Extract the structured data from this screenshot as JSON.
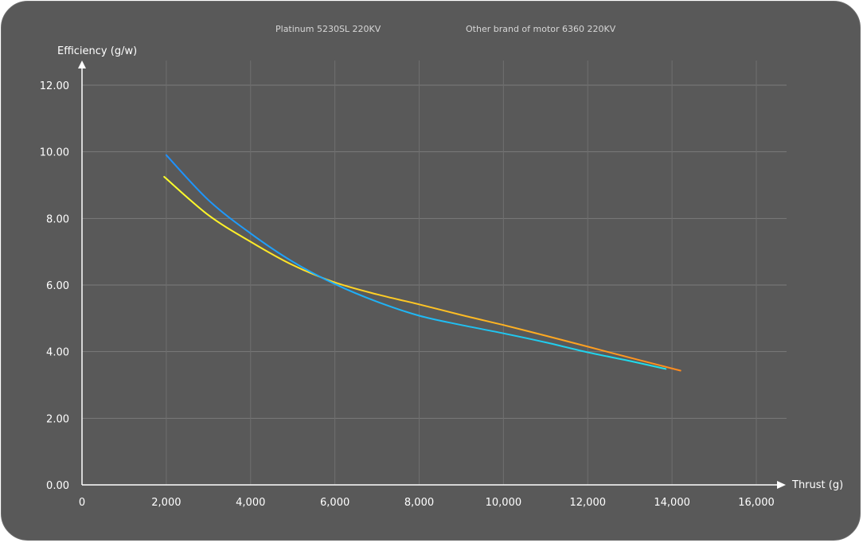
{
  "chart_data": {
    "type": "line",
    "xlabel": "Thrust (g)",
    "ylabel": "Efficiency (g/w)",
    "xlim": [
      0,
      16000
    ],
    "ylim": [
      0,
      12
    ],
    "x_ticks": [
      "0",
      "2,000",
      "4,000",
      "6,000",
      "8,000",
      "10,000",
      "12,000",
      "14,000",
      "16,000"
    ],
    "y_ticks": [
      "0.00",
      "2.00",
      "4.00",
      "6.00",
      "8.00",
      "10.00",
      "12.00"
    ],
    "grid": true,
    "legend_position": "top",
    "series": [
      {
        "name": "Platinum 5230SL 220KV",
        "gradient": [
          "#ffff2a",
          "#ff8a1e"
        ],
        "points": [
          [
            1950,
            9.25
          ],
          [
            3000,
            8.1
          ],
          [
            4000,
            7.3
          ],
          [
            5000,
            6.6
          ],
          [
            6000,
            6.08
          ],
          [
            7000,
            5.72
          ],
          [
            8000,
            5.42
          ],
          [
            9000,
            5.1
          ],
          [
            10000,
            4.8
          ],
          [
            11000,
            4.48
          ],
          [
            12000,
            4.15
          ],
          [
            13000,
            3.82
          ],
          [
            14200,
            3.43
          ]
        ]
      },
      {
        "name": "Other brand of motor 6360 220KV",
        "gradient": [
          "#1e90ff",
          "#20e0ea"
        ],
        "points": [
          [
            2000,
            9.9
          ],
          [
            3000,
            8.55
          ],
          [
            4000,
            7.55
          ],
          [
            5000,
            6.7
          ],
          [
            6000,
            6.03
          ],
          [
            7000,
            5.5
          ],
          [
            8000,
            5.08
          ],
          [
            9000,
            4.8
          ],
          [
            10000,
            4.55
          ],
          [
            11000,
            4.28
          ],
          [
            12000,
            3.98
          ],
          [
            13000,
            3.72
          ],
          [
            13850,
            3.48
          ]
        ]
      }
    ]
  }
}
